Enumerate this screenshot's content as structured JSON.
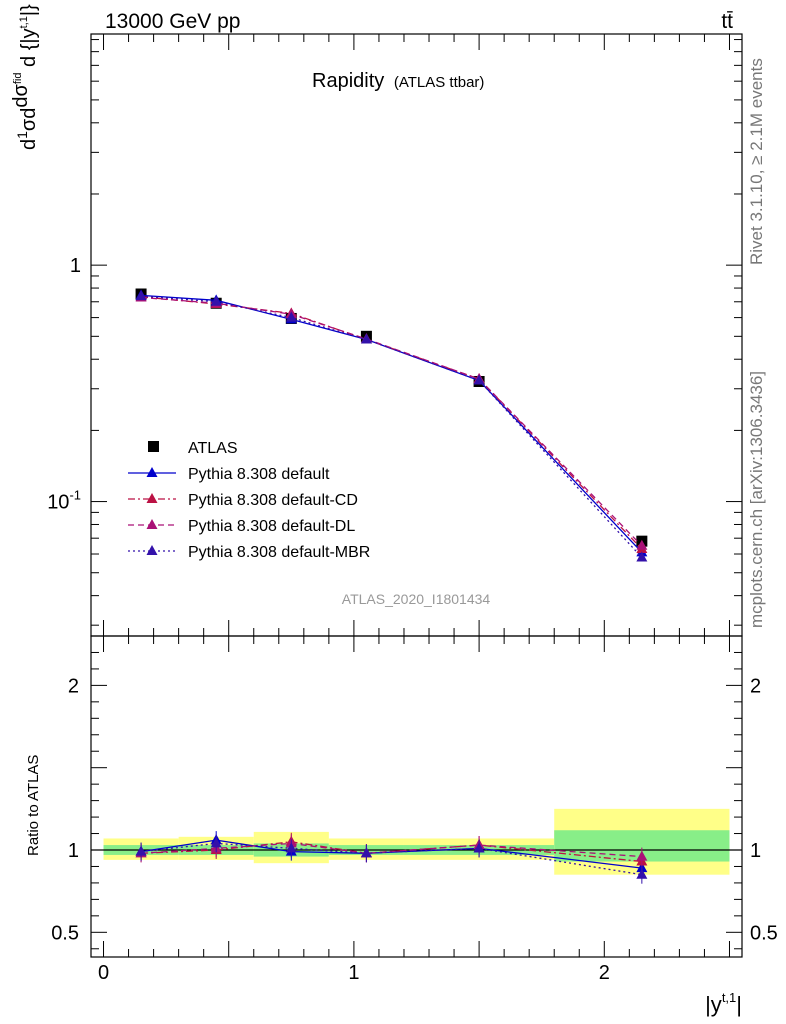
{
  "header": {
    "energy": "13000 GeV pp",
    "process": "tt̄"
  },
  "side_labels": {
    "rivet": "Rivet 3.1.10, ≥ 2.1M events",
    "mcplots": "mcplots.cern.ch [arXiv:1306.3436]"
  },
  "chart_data": [
    {
      "type": "line",
      "title": "Rapidity",
      "subtitle": "(ATLAS ttbar)",
      "watermark": "ATLAS_2020_I1801434",
      "ylabel": "1/σ dσ^{fid}/d|y^{t,1}|",
      "y_scale": "log",
      "ylim": [
        0.027,
        9.5
      ],
      "xlim": [
        -0.05,
        2.55
      ],
      "y_ticks": [
        {
          "value": 1,
          "label": "1"
        },
        {
          "value": 0.1,
          "label": "10^{-1}"
        }
      ],
      "legend_position": "center-left",
      "series": [
        {
          "name": "ATLAS",
          "color": "#000000",
          "style": "marker-square",
          "x": [
            0.15,
            0.45,
            0.75,
            1.05,
            1.5,
            2.15
          ],
          "y": [
            0.755,
            0.69,
            0.595,
            0.5,
            0.322,
            0.068
          ],
          "xerr": [
            0.15,
            0.15,
            0.15,
            0.15,
            0.3,
            0.35
          ]
        },
        {
          "name": "Pythia 8.308 default",
          "color": "#0000cc",
          "style": "solid",
          "x": [
            0.15,
            0.45,
            0.75,
            1.05,
            1.5,
            2.15
          ],
          "y": [
            0.745,
            0.71,
            0.59,
            0.485,
            0.325,
            0.061
          ]
        },
        {
          "name": "Pythia 8.308 default-CD",
          "color": "#bb1144",
          "style": "dashdot",
          "x": [
            0.15,
            0.45,
            0.75,
            1.05,
            1.5,
            2.15
          ],
          "y": [
            0.735,
            0.685,
            0.625,
            0.485,
            0.33,
            0.063
          ]
        },
        {
          "name": "Pythia 8.308 default-DL",
          "color": "#aa1177",
          "style": "dashed",
          "x": [
            0.15,
            0.45,
            0.75,
            1.05,
            1.5,
            2.15
          ],
          "y": [
            0.73,
            0.69,
            0.62,
            0.487,
            0.33,
            0.065
          ]
        },
        {
          "name": "Pythia 8.308 default-MBR",
          "color": "#3311aa",
          "style": "dotted",
          "x": [
            0.15,
            0.45,
            0.75,
            1.05,
            1.5,
            2.15
          ],
          "y": [
            0.74,
            0.7,
            0.6,
            0.485,
            0.325,
            0.058
          ]
        }
      ]
    },
    {
      "type": "line",
      "ylabel": "Ratio to ATLAS",
      "xlabel": "|y^{t,1}|",
      "ylim": [
        0.35,
        2.3
      ],
      "xlim": [
        -0.05,
        2.55
      ],
      "y_ticks": [
        {
          "value": 0.5,
          "label": "0.5"
        },
        {
          "value": 1,
          "label": "1"
        },
        {
          "value": 2,
          "label": "2"
        }
      ],
      "x_ticks": [
        {
          "value": 0,
          "label": "0"
        },
        {
          "value": 1,
          "label": "1"
        },
        {
          "value": 2,
          "label": "2"
        }
      ],
      "bands": [
        {
          "x0": 0.0,
          "x1": 0.3,
          "inner": [
            0.97,
            1.03
          ],
          "outer": [
            0.94,
            1.07
          ]
        },
        {
          "x0": 0.3,
          "x1": 0.6,
          "inner": [
            0.97,
            1.03
          ],
          "outer": [
            0.94,
            1.08
          ]
        },
        {
          "x0": 0.6,
          "x1": 0.9,
          "inner": [
            0.96,
            1.04
          ],
          "outer": [
            0.92,
            1.11
          ]
        },
        {
          "x0": 0.9,
          "x1": 1.2,
          "inner": [
            0.97,
            1.03
          ],
          "outer": [
            0.94,
            1.07
          ]
        },
        {
          "x0": 1.2,
          "x1": 1.8,
          "inner": [
            0.97,
            1.03
          ],
          "outer": [
            0.94,
            1.07
          ]
        },
        {
          "x0": 1.8,
          "x1": 2.5,
          "inner": [
            0.93,
            1.12
          ],
          "outer": [
            0.85,
            1.25
          ]
        }
      ],
      "series": [
        {
          "name": "Pythia 8.308 default",
          "color": "#0000cc",
          "style": "solid",
          "x": [
            0.15,
            0.45,
            0.75,
            1.05,
            1.5,
            2.15
          ],
          "y": [
            0.99,
            1.06,
            0.99,
            0.98,
            1.01,
            0.89
          ]
        },
        {
          "name": "Pythia 8.308 default-CD",
          "color": "#bb1144",
          "style": "dashdot",
          "x": [
            0.15,
            0.45,
            0.75,
            1.05,
            1.5,
            2.15
          ],
          "y": [
            0.98,
            1.0,
            1.05,
            0.98,
            1.03,
            0.93
          ]
        },
        {
          "name": "Pythia 8.308 default-DL",
          "color": "#aa1177",
          "style": "dashed",
          "x": [
            0.15,
            0.45,
            0.75,
            1.05,
            1.5,
            2.15
          ],
          "y": [
            0.98,
            1.01,
            1.04,
            0.98,
            1.03,
            0.96
          ]
        },
        {
          "name": "Pythia 8.308 default-MBR",
          "color": "#3311aa",
          "style": "dotted",
          "x": [
            0.15,
            0.45,
            0.75,
            1.05,
            1.5,
            2.15
          ],
          "y": [
            0.99,
            1.04,
            1.01,
            0.98,
            1.01,
            0.85
          ]
        }
      ]
    }
  ]
}
